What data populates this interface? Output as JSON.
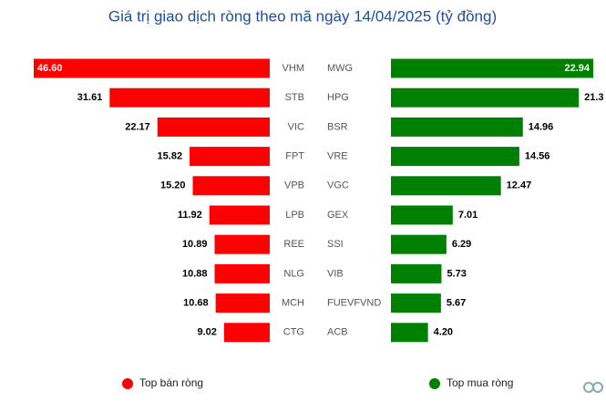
{
  "chart_data": {
    "type": "butterfly-bar",
    "title": "Giá trị giao dịch ròng theo mã ngày 14/04/2025 (tỷ đồng)",
    "series": [
      {
        "name": "Top bán ròng",
        "color": "#ff0000",
        "categories": [
          "VHM",
          "STB",
          "VIC",
          "FPT",
          "VPB",
          "LPB",
          "REE",
          "NLG",
          "MCH",
          "CTG"
        ],
        "values": [
          46.6,
          31.61,
          22.17,
          15.82,
          15.2,
          11.92,
          10.89,
          10.88,
          10.68,
          9.02
        ],
        "value_labels": [
          "46.60",
          "31.61",
          "22.17",
          "15.82",
          "15.20",
          "11.92",
          "10.89",
          "10.88",
          "10.68",
          "9.02"
        ]
      },
      {
        "name": "Top mua ròng",
        "color": "#008000",
        "categories": [
          "MWG",
          "HPG",
          "BSR",
          "VRE",
          "VGC",
          "GEX",
          "SSI",
          "VIB",
          "FUEVFVND",
          "ACB"
        ],
        "values": [
          22.94,
          21.3,
          14.96,
          14.56,
          12.47,
          7.01,
          6.29,
          5.73,
          5.67,
          4.2
        ],
        "value_labels": [
          "22.94",
          "21.3",
          "14.96",
          "14.56",
          "12.47",
          "7.01",
          "6.29",
          "5.73",
          "5.67",
          "4.20"
        ]
      }
    ]
  }
}
